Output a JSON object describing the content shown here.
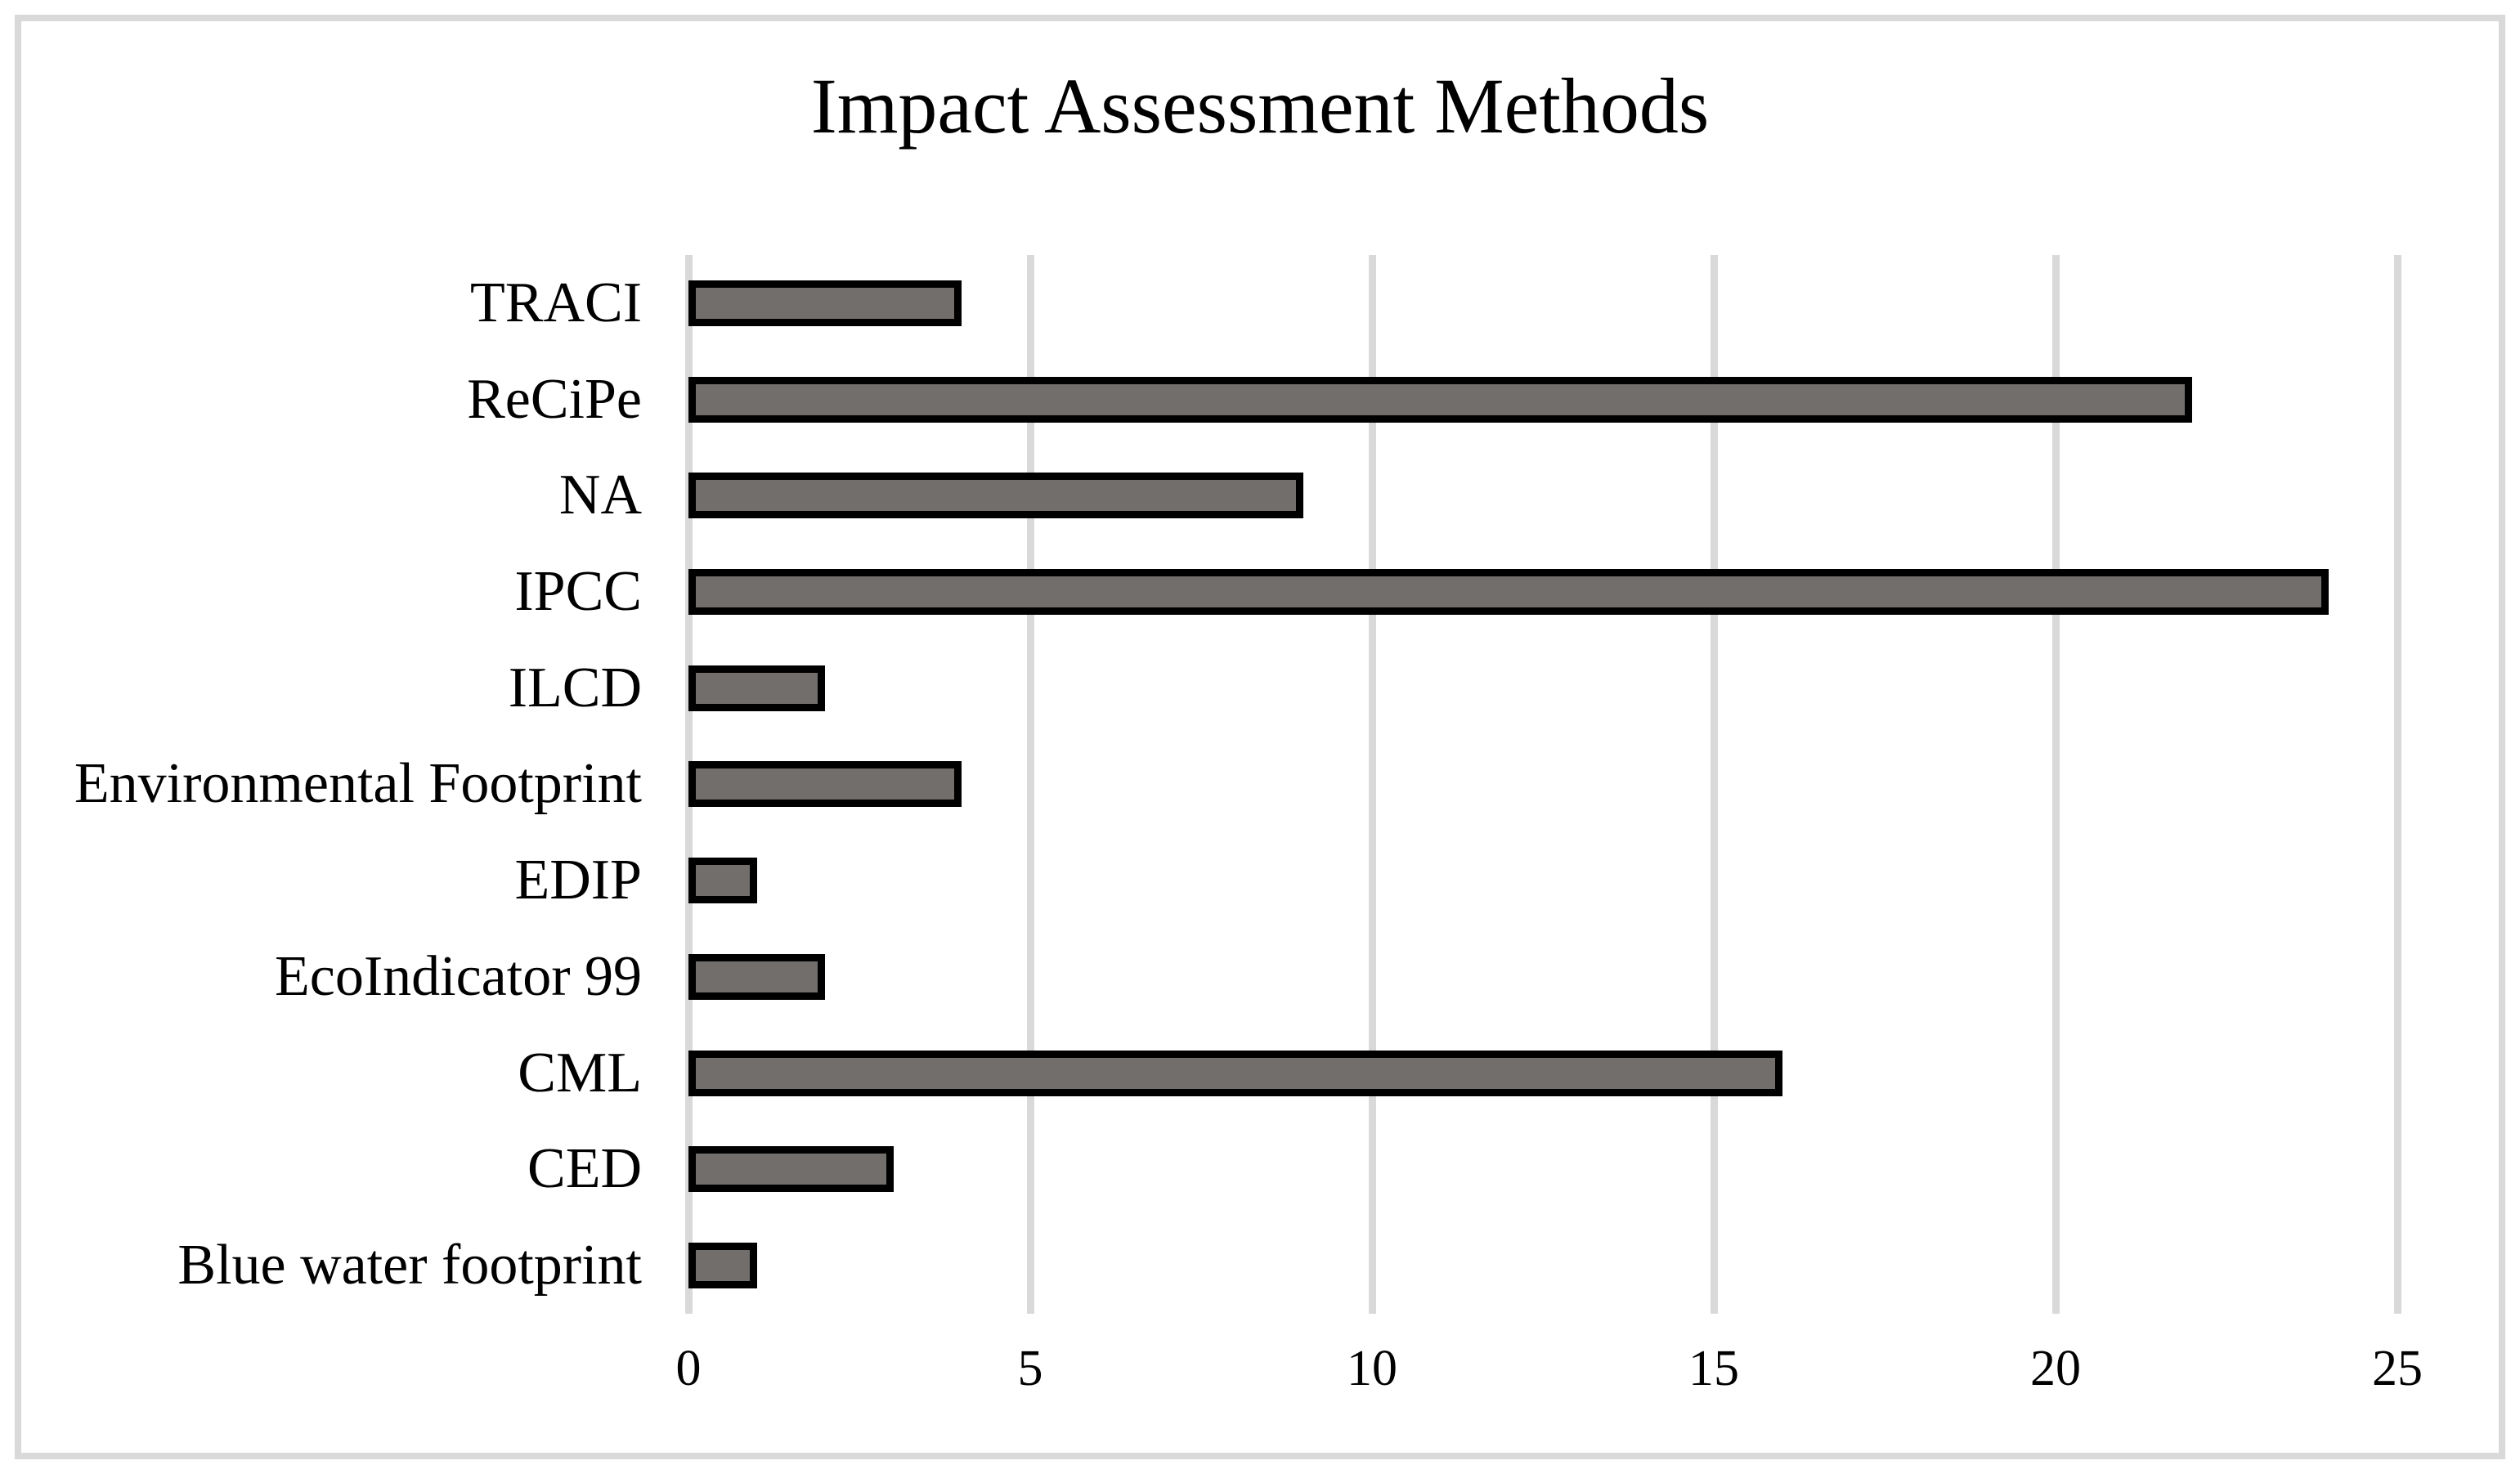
{
  "title": "Impact Assessment Methods",
  "chart_data": {
    "type": "bar",
    "orientation": "horizontal",
    "title": "Impact Assessment Methods",
    "categories": [
      "TRACI",
      "ReCiPe",
      "NA",
      "IPCC",
      "ILCD",
      "Environmental Footprint",
      "EDIP",
      "EcoIndicator 99",
      "CML",
      "CED",
      "Blue water footprint"
    ],
    "values": [
      4,
      22,
      9,
      24,
      2,
      4,
      1,
      2,
      16,
      3,
      1
    ],
    "xlabel": "",
    "ylabel": "",
    "xlim": [
      0,
      25
    ],
    "xticks": [
      0,
      5,
      10,
      15,
      20,
      25
    ],
    "grid": "vertical",
    "legend": "none",
    "colors": {
      "bar_fill": "#716e6b",
      "bar_border": "#000000",
      "gridline": "#d9d9d9",
      "frame_border": "#d9d9d9",
      "background": "#ffffff",
      "text": "#000000"
    }
  }
}
